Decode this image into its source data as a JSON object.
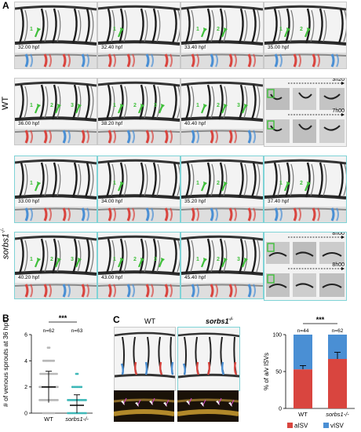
{
  "panels": {
    "A": {
      "label": "A",
      "wt_label": "WT",
      "mutant_label": "sorbs1",
      "mutant_sup": "-/-",
      "wt_times": [
        "32.00 hpf",
        "32.40 hpf",
        "33.40 hpf",
        "35.00 hpf",
        "36.00 hpf",
        "38.20 hpf",
        "40.40 hpf"
      ],
      "mut_times": [
        "33.00 hpf",
        "34.00 hpf",
        "35.20 hpf",
        "37.40 hpf",
        "40.20 hpf",
        "43.00 hpf",
        "45.40 hpf"
      ],
      "wt_inset_durations": [
        "3h20",
        "7h00"
      ],
      "mut_inset_durations": [
        "8h00",
        "8h00"
      ],
      "sprout_numbers": [
        "1",
        "2",
        "3"
      ]
    },
    "B": {
      "label": "B",
      "ylabel": "# of venous sprouts at 36 hpf",
      "significance": "***"
    },
    "C": {
      "label": "C",
      "wt_label": "WT",
      "mutant_label": "sorbs1",
      "mutant_sup": "-/-",
      "significance": "***"
    }
  },
  "colors": {
    "arterial": "#d9453f",
    "venous": "#4a8fd4",
    "sprout": "#3fbf3a",
    "frame_mutant": "#7fd3d6",
    "swarm_wt": "#b8b8b8",
    "swarm_mut": "#3fb8b8"
  },
  "chart_data": [
    {
      "type": "scatter",
      "title": "",
      "ylabel": "# of venous sprouts at 36 hpf",
      "ylim": [
        0,
        6
      ],
      "yticks": [
        0,
        2,
        4,
        6
      ],
      "categories": [
        "WT",
        "sorbs1-/-"
      ],
      "n_labels": [
        "n=62",
        "n=63"
      ],
      "means": [
        2.0,
        0.6
      ],
      "sd": [
        1.2,
        0.8
      ],
      "counts": [
        {
          "value": 0,
          "WT": 8,
          "sorbs1-/-": 36
        },
        {
          "value": 1,
          "WT": 14,
          "sorbs1-/-": 18
        },
        {
          "value": 2,
          "WT": 18,
          "sorbs1-/-": 7
        },
        {
          "value": 3,
          "WT": 12,
          "sorbs1-/-": 2
        },
        {
          "value": 4,
          "WT": 8,
          "sorbs1-/-": 0
        },
        {
          "value": 5,
          "WT": 2,
          "sorbs1-/-": 0
        }
      ],
      "significance": "***"
    },
    {
      "type": "bar",
      "stacked": true,
      "ylabel": "% of a/v ISVs",
      "ylim": [
        0,
        100
      ],
      "yticks": [
        0,
        50,
        100
      ],
      "categories": [
        "WT",
        "sorbs1-/-"
      ],
      "n_labels": [
        "n=44",
        "n=62"
      ],
      "series": [
        {
          "name": "aISV",
          "values": [
            53,
            67
          ],
          "error": [
            5,
            9
          ]
        },
        {
          "name": "vISV",
          "values": [
            47,
            33
          ]
        }
      ],
      "significance": "***"
    }
  ]
}
